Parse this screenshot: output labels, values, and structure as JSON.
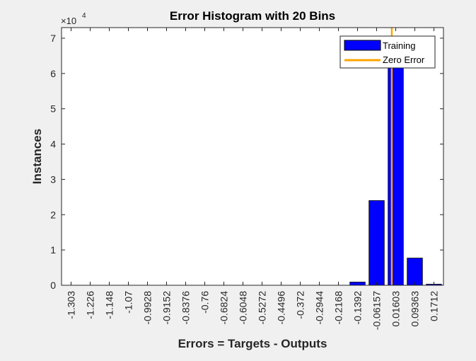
{
  "chart_data": {
    "type": "bar",
    "title": "Error Histogram with 20 Bins",
    "xlabel": "Errors = Targets - Outputs",
    "ylabel": "Instances",
    "y_exponent_label": "×10",
    "y_exponent_power": "4",
    "y_multiplier": 10000,
    "ylim": [
      0,
      73000
    ],
    "yticks": [
      0,
      10000,
      20000,
      30000,
      40000,
      50000,
      60000,
      70000
    ],
    "ytick_labels": [
      "0",
      "1",
      "2",
      "3",
      "4",
      "5",
      "6",
      "7"
    ],
    "categories": [
      "-1.303",
      "-1.226",
      "-1.148",
      "-1.07",
      "-0.9928",
      "-0.9152",
      "-0.8376",
      "-0.76",
      "-0.6824",
      "-0.6048",
      "-0.5272",
      "-0.4496",
      "-0.372",
      "-0.2944",
      "-0.2168",
      "-0.1392",
      "-0.06157",
      "0.01603",
      "0.09363",
      "0.1712"
    ],
    "series": [
      {
        "name": "Training",
        "color": "#0000ff",
        "values": [
          0,
          0,
          0,
          0,
          0,
          0,
          0,
          0,
          0,
          0,
          0,
          0,
          0,
          0,
          0,
          900,
          24000,
          63000,
          7700,
          300
        ]
      }
    ],
    "zero_error": {
      "name": "Zero Error",
      "value": 0,
      "color": "#ffa500"
    },
    "legend_position": "top-right",
    "grid": false
  }
}
